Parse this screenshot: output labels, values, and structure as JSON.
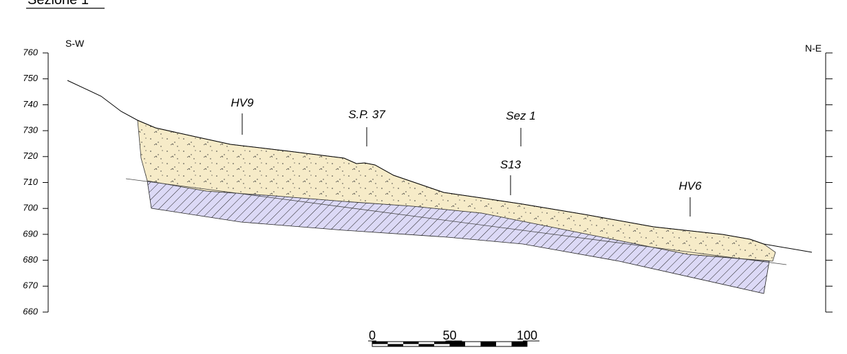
{
  "title": "Sezione 1",
  "directions": {
    "left": "S-W",
    "right": "N-E"
  },
  "axis": {
    "ylim": [
      660,
      760
    ],
    "yticks": [
      660,
      670,
      680,
      690,
      700,
      710,
      720,
      730,
      740,
      750,
      760
    ]
  },
  "annotations": [
    "HV9",
    "S.P. 37",
    "Sez 1",
    "S13",
    "HV6"
  ],
  "scale_bar": {
    "ticks": [
      0,
      50,
      100
    ]
  }
}
